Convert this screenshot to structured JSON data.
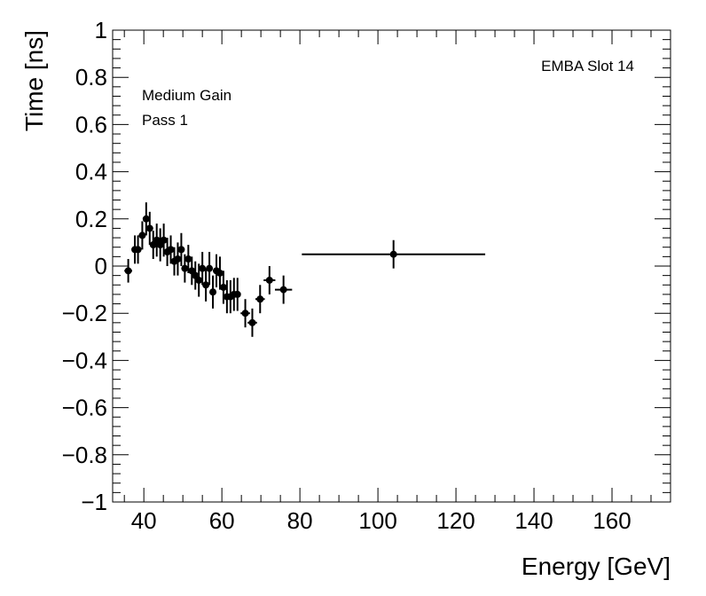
{
  "chart_data": {
    "type": "scatter",
    "xlabel": "Energy [GeV]",
    "ylabel": "Time [ns]",
    "xlim": [
      32,
      175
    ],
    "ylim": [
      -1,
      1
    ],
    "xticks": [
      40,
      60,
      80,
      100,
      120,
      140,
      160
    ],
    "yticks": [
      -1,
      -0.8,
      -0.6,
      -0.4,
      -0.2,
      0,
      0.2,
      0.4,
      0.6,
      0.8,
      1
    ],
    "ytick_labels": [
      "−1",
      "−0.8",
      "−0.6",
      "−0.4",
      "−0.2",
      "0",
      "0.2",
      "0.4",
      "0.6",
      "0.8",
      "1"
    ],
    "annotations": {
      "gain": "Medium Gain",
      "pass": "Pass 1",
      "slot": "EMBA Slot 14"
    },
    "grid": false,
    "legend": "none",
    "marker_color": "#000000",
    "points": [
      {
        "x": 36.0,
        "y": -0.02,
        "ex": 1.0,
        "ey": 0.05
      },
      {
        "x": 37.7,
        "y": 0.07,
        "ex": 0.6,
        "ey": 0.06
      },
      {
        "x": 38.5,
        "y": 0.07,
        "ex": 0.6,
        "ey": 0.06
      },
      {
        "x": 39.6,
        "y": 0.13,
        "ex": 0.6,
        "ey": 0.06
      },
      {
        "x": 40.6,
        "y": 0.2,
        "ex": 0.6,
        "ey": 0.07
      },
      {
        "x": 41.5,
        "y": 0.16,
        "ex": 0.6,
        "ey": 0.07
      },
      {
        "x": 42.4,
        "y": 0.09,
        "ex": 0.6,
        "ey": 0.06
      },
      {
        "x": 43.3,
        "y": 0.11,
        "ex": 0.6,
        "ey": 0.07
      },
      {
        "x": 44.2,
        "y": 0.09,
        "ex": 0.6,
        "ey": 0.07
      },
      {
        "x": 45.1,
        "y": 0.11,
        "ex": 0.6,
        "ey": 0.07
      },
      {
        "x": 46.0,
        "y": 0.06,
        "ex": 0.6,
        "ey": 0.06
      },
      {
        "x": 46.9,
        "y": 0.07,
        "ex": 0.6,
        "ey": 0.06
      },
      {
        "x": 47.8,
        "y": 0.02,
        "ex": 0.6,
        "ey": 0.06
      },
      {
        "x": 48.7,
        "y": 0.03,
        "ex": 0.6,
        "ey": 0.07
      },
      {
        "x": 49.6,
        "y": 0.07,
        "ex": 0.6,
        "ey": 0.07
      },
      {
        "x": 50.5,
        "y": -0.01,
        "ex": 0.6,
        "ey": 0.06
      },
      {
        "x": 51.4,
        "y": 0.03,
        "ex": 0.6,
        "ey": 0.06
      },
      {
        "x": 52.3,
        "y": -0.02,
        "ex": 0.6,
        "ey": 0.06
      },
      {
        "x": 53.2,
        "y": -0.04,
        "ex": 0.6,
        "ey": 0.06
      },
      {
        "x": 54.1,
        "y": -0.06,
        "ex": 0.6,
        "ey": 0.07
      },
      {
        "x": 55.0,
        "y": -0.01,
        "ex": 0.6,
        "ey": 0.07
      },
      {
        "x": 55.9,
        "y": -0.08,
        "ex": 0.6,
        "ey": 0.07
      },
      {
        "x": 56.8,
        "y": -0.01,
        "ex": 0.6,
        "ey": 0.07
      },
      {
        "x": 57.7,
        "y": -0.11,
        "ex": 0.6,
        "ey": 0.07
      },
      {
        "x": 58.6,
        "y": -0.02,
        "ex": 0.6,
        "ey": 0.07
      },
      {
        "x": 59.5,
        "y": -0.03,
        "ex": 0.6,
        "ey": 0.07
      },
      {
        "x": 60.4,
        "y": -0.09,
        "ex": 0.6,
        "ey": 0.07
      },
      {
        "x": 61.3,
        "y": -0.13,
        "ex": 0.6,
        "ey": 0.07
      },
      {
        "x": 62.2,
        "y": -0.13,
        "ex": 0.6,
        "ey": 0.07
      },
      {
        "x": 63.1,
        "y": -0.12,
        "ex": 0.6,
        "ey": 0.07
      },
      {
        "x": 64.0,
        "y": -0.12,
        "ex": 0.6,
        "ey": 0.07
      },
      {
        "x": 66.0,
        "y": -0.2,
        "ex": 1.2,
        "ey": 0.06
      },
      {
        "x": 67.8,
        "y": -0.24,
        "ex": 1.2,
        "ey": 0.06
      },
      {
        "x": 69.8,
        "y": -0.14,
        "ex": 1.2,
        "ey": 0.06
      },
      {
        "x": 72.2,
        "y": -0.06,
        "ex": 1.5,
        "ey": 0.06
      },
      {
        "x": 75.8,
        "y": -0.1,
        "ex": 2.2,
        "ey": 0.06
      },
      {
        "x": 104.0,
        "y": 0.05,
        "ex": 23.5,
        "ey": 0.06
      }
    ]
  }
}
